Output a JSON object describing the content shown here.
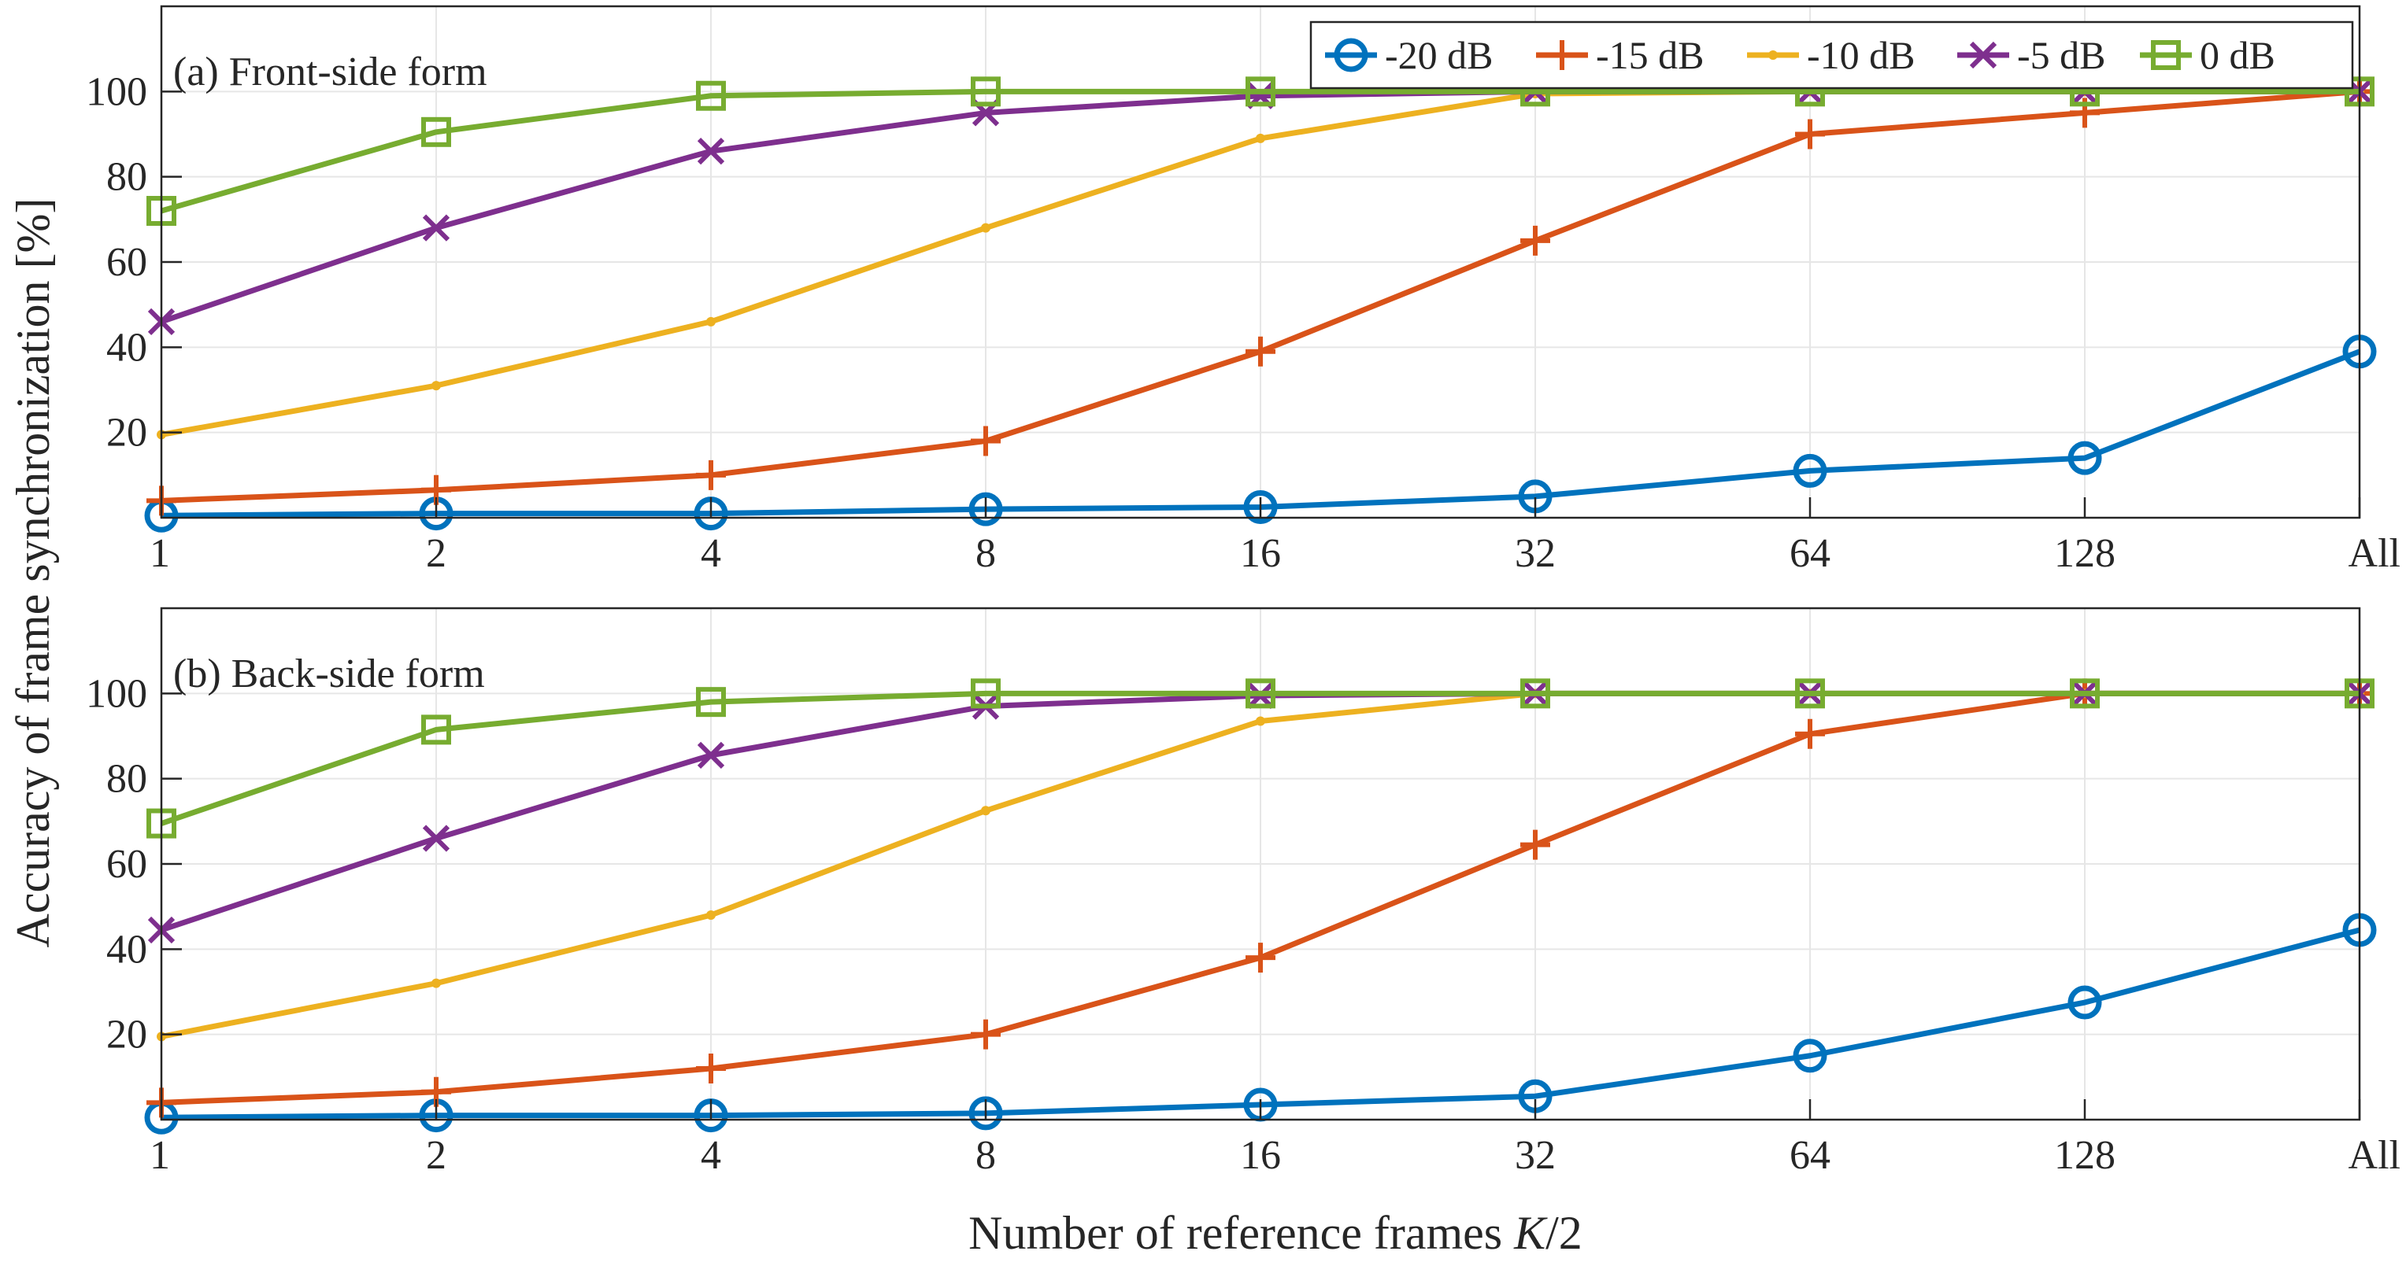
{
  "chart_data": {
    "type": "line",
    "ylabel": "Accuracy of frame synchronization [%]",
    "xlabel_prefix": "Number of reference frames ",
    "xlabel_var": "K",
    "xlabel_suffix": "/2",
    "categories": [
      "1",
      "2",
      "4",
      "8",
      "16",
      "32",
      "64",
      "128",
      "All"
    ],
    "yticks": [
      "20",
      "40",
      "60",
      "80",
      "100"
    ],
    "ylim": [
      0,
      120
    ],
    "grid": true,
    "legend_position": "top-right",
    "legend": [
      "-20 dB",
      "-15 dB",
      "-10 dB",
      "-5 dB",
      "0 dB"
    ],
    "colors": {
      "-20 dB": "#0072BD",
      "-15 dB": "#D95319",
      "-10 dB": "#EDB120",
      "-5 dB": "#7E2F8E",
      "0 dB": "#77AC30"
    },
    "markers": {
      "-20 dB": "circle",
      "-15 dB": "plus",
      "-10 dB": "dot",
      "-5 dB": "cross",
      "0 dB": "square"
    },
    "panels": [
      {
        "title": "(a) Front-side form",
        "series": [
          {
            "name": "-20 dB",
            "values": [
              0.5,
              1,
              1,
              2,
              2.5,
              5,
              11,
              14,
              39
            ]
          },
          {
            "name": "-15 dB",
            "values": [
              4,
              6.5,
              10,
              18,
              39,
              65,
              90,
              95,
              100
            ]
          },
          {
            "name": "-10 dB",
            "values": [
              19.5,
              31,
              46,
              68,
              89,
              99.5,
              100,
              100,
              100
            ]
          },
          {
            "name": "-5 dB",
            "values": [
              46,
              68,
              86,
              95,
              99,
              100,
              100,
              100,
              100
            ]
          },
          {
            "name": "0 dB",
            "values": [
              72,
              90.5,
              99,
              100,
              100,
              100,
              100,
              100,
              100
            ]
          }
        ]
      },
      {
        "title": "(b) Back-side form",
        "series": [
          {
            "name": "-20 dB",
            "values": [
              0.5,
              1,
              1,
              1.5,
              3.5,
              5.5,
              15,
              27.5,
              44.5
            ]
          },
          {
            "name": "-15 dB",
            "values": [
              4,
              6.5,
              12,
              20,
              38,
              64.5,
              90.5,
              100,
              100
            ]
          },
          {
            "name": "-10 dB",
            "values": [
              19.5,
              32,
              48,
              72.5,
              93.5,
              100,
              100,
              100,
              100
            ]
          },
          {
            "name": "-5 dB",
            "values": [
              44.5,
              66,
              85.5,
              97,
              99.5,
              100,
              100,
              100,
              100
            ]
          },
          {
            "name": "0 dB",
            "values": [
              69.5,
              91.5,
              98,
              100,
              100,
              100,
              100,
              100,
              100
            ]
          }
        ]
      }
    ]
  }
}
